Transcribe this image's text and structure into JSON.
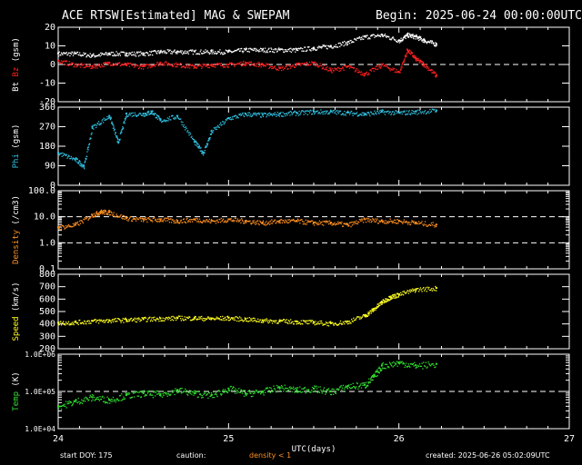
{
  "header": {
    "title": "ACE RTSW[Estimated] MAG & SWEPAM",
    "begin": "Begin: 2025-06-24 00:00:00UTC"
  },
  "footer": {
    "start_doy": "start DOY: 175",
    "caution_label": "caution:",
    "caution_text": "density < 1",
    "created": "created: 2025-06-26 05:02:09UTC"
  },
  "colors": {
    "bt": "#ffffff",
    "bz": "#ff2020",
    "phi": "#30c0e0",
    "density": "#ff9020",
    "speed": "#ffff20",
    "temp": "#30e030",
    "caution": "#ff9020"
  },
  "chart_data": [
    {
      "type": "scatter",
      "id": "mag",
      "ylabel_parts": [
        "Bt",
        "Bz",
        "(gsm)"
      ],
      "ylim": [
        -20,
        20
      ],
      "yticks": [
        -20,
        -10,
        0,
        10,
        20
      ],
      "reference_lines": [
        0
      ],
      "series": [
        {
          "name": "Bt",
          "x": [
            24.0,
            24.1,
            24.2,
            24.3,
            24.4,
            24.5,
            24.6,
            24.7,
            24.8,
            24.9,
            25.0,
            25.1,
            25.2,
            25.3,
            25.4,
            25.5,
            25.6,
            25.7,
            25.8,
            25.9,
            26.0,
            26.05,
            26.1,
            26.15,
            26.22
          ],
          "y": [
            6,
            6,
            5,
            6,
            6,
            6,
            7,
            7,
            7,
            7,
            7,
            8,
            8,
            8,
            8,
            9,
            10,
            12,
            15,
            16,
            13,
            16,
            15,
            13,
            11
          ]
        },
        {
          "name": "Bz",
          "x": [
            24.0,
            24.1,
            24.2,
            24.3,
            24.4,
            24.5,
            24.6,
            24.7,
            24.8,
            24.9,
            25.0,
            25.1,
            25.2,
            25.3,
            25.4,
            25.5,
            25.6,
            25.7,
            25.8,
            25.9,
            26.0,
            26.05,
            26.1,
            26.15,
            26.22
          ],
          "y": [
            2,
            0,
            -1,
            1,
            0,
            -1,
            1,
            0,
            -1,
            0,
            0,
            1,
            0,
            -2,
            0,
            1,
            -3,
            -1,
            -5,
            0,
            -4,
            8,
            3,
            0,
            -6
          ]
        }
      ]
    },
    {
      "type": "scatter",
      "id": "phi",
      "ylabel": "Phi (gsm)",
      "ylim": [
        0,
        360
      ],
      "yticks": [
        0,
        90,
        180,
        270,
        360
      ],
      "series": [
        {
          "name": "Phi",
          "x": [
            24.0,
            24.1,
            24.15,
            24.2,
            24.3,
            24.35,
            24.4,
            24.5,
            24.55,
            24.6,
            24.7,
            24.8,
            24.85,
            24.9,
            25.0,
            25.1,
            25.2,
            25.3,
            25.4,
            25.5,
            25.6,
            25.7,
            25.8,
            25.9,
            26.0,
            26.1,
            26.22
          ],
          "y": [
            150,
            120,
            90,
            270,
            320,
            200,
            330,
            330,
            340,
            300,
            320,
            200,
            150,
            250,
            310,
            330,
            325,
            330,
            335,
            340,
            340,
            335,
            330,
            340,
            335,
            340,
            345
          ]
        }
      ]
    },
    {
      "type": "scatter",
      "id": "density",
      "ylabel": "Density (/cm3)",
      "yscale": "log",
      "ylim": [
        0.1,
        100
      ],
      "ytick_labels": [
        "0.1",
        "1.0",
        "10.0",
        "100.0"
      ],
      "reference_lines": [
        1,
        10
      ],
      "series": [
        {
          "name": "Density",
          "x": [
            24.0,
            24.1,
            24.2,
            24.25,
            24.3,
            24.4,
            24.5,
            24.6,
            24.7,
            24.8,
            24.9,
            25.0,
            25.1,
            25.2,
            25.3,
            25.4,
            25.5,
            25.6,
            25.7,
            25.8,
            25.9,
            26.0,
            26.1,
            26.22
          ],
          "y": [
            4,
            5,
            12,
            16,
            15,
            9,
            8,
            8,
            7,
            8,
            7,
            8,
            7,
            6,
            7,
            7,
            6,
            6,
            5,
            8,
            7,
            7,
            6,
            5
          ]
        }
      ]
    },
    {
      "type": "scatter",
      "id": "speed",
      "ylabel": "Speed (km/s)",
      "ylim": [
        200,
        800
      ],
      "yticks": [
        200,
        300,
        400,
        500,
        600,
        700,
        800
      ],
      "series": [
        {
          "name": "Speed",
          "x": [
            24.0,
            24.1,
            24.2,
            24.3,
            24.4,
            24.5,
            24.6,
            24.7,
            24.8,
            24.9,
            25.0,
            25.1,
            25.2,
            25.3,
            25.4,
            25.5,
            25.6,
            25.7,
            25.8,
            25.85,
            25.9,
            25.95,
            26.0,
            26.1,
            26.22
          ],
          "y": [
            410,
            415,
            425,
            430,
            435,
            440,
            445,
            450,
            450,
            445,
            450,
            440,
            430,
            425,
            420,
            415,
            405,
            420,
            470,
            520,
            580,
            620,
            640,
            680,
            690
          ]
        }
      ]
    },
    {
      "type": "scatter",
      "id": "temp",
      "ylabel": "Temp (K)",
      "yscale": "log",
      "ylim": [
        10000,
        1000000
      ],
      "ytick_labels": [
        "1.0E+04",
        "1.0E+05",
        "1.0E+06"
      ],
      "reference_lines": [
        100000
      ],
      "xlabel": "UTC(days)",
      "xlim": [
        24,
        27
      ],
      "xticks": [
        "24",
        "25",
        "26",
        "27"
      ],
      "series": [
        {
          "name": "Temp",
          "x": [
            24.0,
            24.1,
            24.2,
            24.3,
            24.4,
            24.5,
            24.6,
            24.7,
            24.8,
            24.9,
            25.0,
            25.1,
            25.2,
            25.3,
            25.4,
            25.5,
            25.6,
            25.7,
            25.8,
            25.85,
            25.9,
            26.0,
            26.1,
            26.22
          ],
          "y": [
            40000,
            55000,
            70000,
            60000,
            80000,
            90000,
            85000,
            110000,
            90000,
            80000,
            120000,
            90000,
            100000,
            130000,
            110000,
            120000,
            100000,
            140000,
            150000,
            250000,
            500000,
            600000,
            500000,
            550000
          ]
        }
      ]
    }
  ]
}
